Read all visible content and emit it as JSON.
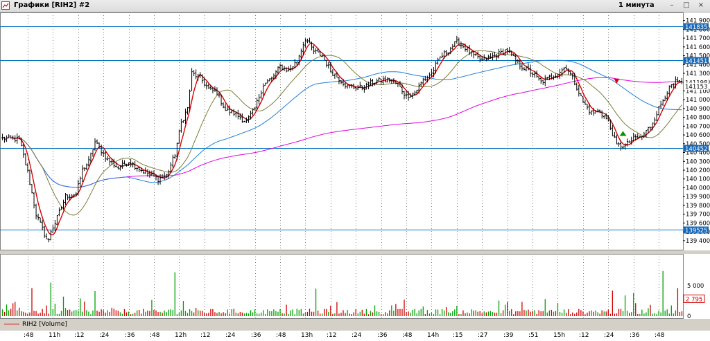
{
  "window": {
    "title": "Графики [RIH2] #2",
    "timeframe": "1 минута",
    "buttons": {
      "minimize": "–",
      "maximize": "□",
      "close": "×"
    }
  },
  "colors": {
    "price_bars": "#000000",
    "sma_fast": "#d40000",
    "sma_mid": "#7c7a3a",
    "sma_slow": "#1e7ed8",
    "sma_long": "#e000e0",
    "levels": "#0070c0",
    "level_tag_bg": "#1668b8",
    "volume_up": "#00a000",
    "volume_down": "#d00000",
    "grid": "#808080"
  },
  "chart_data": [
    {
      "type": "candlestick",
      "symbol": "RIH2",
      "ylim": [
        139320,
        141960
      ],
      "y_ticks": [
        "141 900",
        "141 800",
        "141 700",
        "141 600",
        "141 500",
        "141 400",
        "141 300",
        "141 200",
        "141 100",
        "141 000",
        "140 900",
        "140 800",
        "140 700",
        "140 600",
        "140 500",
        "140 400",
        "140 300",
        "140 200",
        "140 100",
        "140 000",
        "139 900",
        "139 800",
        "139 700",
        "139 600",
        "139 500",
        "139 400"
      ],
      "y_tick_values": [
        141900,
        141800,
        141700,
        141600,
        141500,
        141400,
        141300,
        141200,
        141100,
        141000,
        140900,
        140800,
        140700,
        140600,
        140500,
        140400,
        140300,
        140200,
        140100,
        140000,
        139900,
        139800,
        139700,
        139600,
        139500,
        139400
      ],
      "levels": [
        {
          "label": "141835",
          "value": 141835
        },
        {
          "label": "141451",
          "value": 141451
        },
        {
          "label": "140452",
          "value": 140452
        },
        {
          "label": "139525",
          "value": 139525
        }
      ],
      "close_tags": [
        {
          "label": "141198",
          "value": 141198
        },
        {
          "label": "141153",
          "value": 141153
        }
      ],
      "signals": [
        {
          "type": "sell",
          "index": 292,
          "value": 141200
        },
        {
          "type": "buy",
          "index": 295,
          "value": 140620
        }
      ],
      "x_labels": [
        ":48",
        "11h",
        ":12",
        ":24",
        ":36",
        ":48",
        "12h",
        ":12",
        ":24",
        ":36",
        ":48",
        "13h",
        ":12",
        ":24",
        ":36",
        ":48",
        "14h",
        ":15",
        ":27",
        ":39",
        ":51",
        "15h",
        ":12",
        ":24",
        ":36",
        ":48"
      ],
      "x_label_index": [
        12,
        24,
        36,
        48,
        60,
        72,
        84,
        96,
        108,
        120,
        132,
        144,
        156,
        168,
        180,
        192,
        204,
        216,
        228,
        240,
        252,
        264,
        276,
        288,
        300,
        312
      ],
      "price_keypoints": [
        [
          0,
          140560
        ],
        [
          8,
          140550
        ],
        [
          12,
          140180
        ],
        [
          16,
          139700
        ],
        [
          21,
          139420
        ],
        [
          25,
          139600
        ],
        [
          30,
          139900
        ],
        [
          35,
          139930
        ],
        [
          38,
          140200
        ],
        [
          41,
          140300
        ],
        [
          44,
          140520
        ],
        [
          50,
          140320
        ],
        [
          55,
          140230
        ],
        [
          60,
          140300
        ],
        [
          66,
          140200
        ],
        [
          70,
          140150
        ],
        [
          74,
          140100
        ],
        [
          78,
          140140
        ],
        [
          82,
          140380
        ],
        [
          85,
          140740
        ],
        [
          88,
          140900
        ],
        [
          90,
          141300
        ],
        [
          94,
          141250
        ],
        [
          98,
          141120
        ],
        [
          102,
          141080
        ],
        [
          106,
          140880
        ],
        [
          110,
          140850
        ],
        [
          116,
          140750
        ],
        [
          120,
          140900
        ],
        [
          124,
          141170
        ],
        [
          128,
          141240
        ],
        [
          132,
          141380
        ],
        [
          136,
          141330
        ],
        [
          140,
          141440
        ],
        [
          144,
          141700
        ],
        [
          148,
          141550
        ],
        [
          152,
          141500
        ],
        [
          156,
          141330
        ],
        [
          160,
          141240
        ],
        [
          164,
          141150
        ],
        [
          168,
          141140
        ],
        [
          172,
          141140
        ],
        [
          176,
          141200
        ],
        [
          180,
          141220
        ],
        [
          184,
          141230
        ],
        [
          188,
          141170
        ],
        [
          192,
          141040
        ],
        [
          196,
          141080
        ],
        [
          200,
          141220
        ],
        [
          204,
          141300
        ],
        [
          208,
          141480
        ],
        [
          212,
          141560
        ],
        [
          216,
          141660
        ],
        [
          220,
          141590
        ],
        [
          224,
          141500
        ],
        [
          228,
          141450
        ],
        [
          232,
          141480
        ],
        [
          236,
          141520
        ],
        [
          240,
          141570
        ],
        [
          244,
          141440
        ],
        [
          248,
          141360
        ],
        [
          252,
          141300
        ],
        [
          256,
          141200
        ],
        [
          260,
          141250
        ],
        [
          264,
          141300
        ],
        [
          268,
          141380
        ],
        [
          272,
          141200
        ],
        [
          276,
          140970
        ],
        [
          280,
          140850
        ],
        [
          284,
          140870
        ],
        [
          288,
          140750
        ],
        [
          292,
          140480
        ],
        [
          296,
          140480
        ],
        [
          300,
          140560
        ],
        [
          304,
          140580
        ],
        [
          308,
          140700
        ],
        [
          312,
          140900
        ],
        [
          316,
          141100
        ],
        [
          320,
          141200
        ],
        [
          323,
          141180
        ]
      ],
      "min_index": 22,
      "min_value": 139380,
      "n_bars": 324
    },
    {
      "type": "bar",
      "title": "RIH2 [Volume]",
      "ylim": [
        0,
        10000
      ],
      "y_ticks": [
        "5 000",
        "0"
      ],
      "y_tick_values": [
        5000,
        0
      ],
      "last_value": "2 795",
      "spikes": [
        {
          "index": 14,
          "value": 4600
        },
        {
          "index": 23,
          "value": 5500
        },
        {
          "index": 29,
          "value": 3200
        },
        {
          "index": 37,
          "value": 2900
        },
        {
          "index": 44,
          "value": 4100
        },
        {
          "index": 82,
          "value": 7200
        },
        {
          "index": 86,
          "value": 2500
        },
        {
          "index": 149,
          "value": 4500
        },
        {
          "index": 191,
          "value": 2700
        },
        {
          "index": 258,
          "value": 2800
        },
        {
          "index": 290,
          "value": 4200
        },
        {
          "index": 296,
          "value": 3400
        },
        {
          "index": 300,
          "value": 3800
        },
        {
          "index": 314,
          "value": 7400
        },
        {
          "index": 321,
          "value": 4600
        }
      ]
    }
  ]
}
